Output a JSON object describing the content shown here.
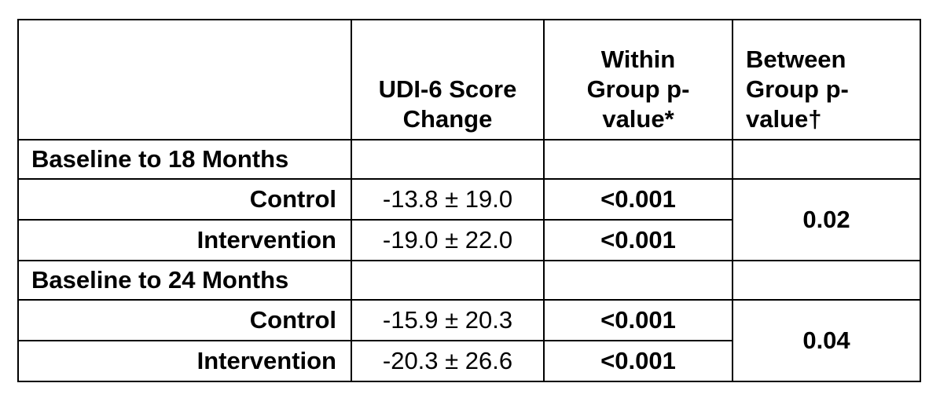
{
  "header": {
    "col1": "",
    "score_change": [
      "UDI-6 Score",
      "Change"
    ],
    "within": [
      "Within",
      "Group p-",
      "value*"
    ],
    "between": [
      "Between",
      "Group p-",
      "value†"
    ]
  },
  "sections": [
    {
      "label": "Baseline to 18 Months",
      "rows": [
        {
          "group": "Control",
          "score": "-13.8 ± 19.0",
          "within_p": "<0.001"
        },
        {
          "group": "Intervention",
          "score": "-19.0 ± 22.0",
          "within_p": "<0.001"
        }
      ],
      "between_p": "0.02"
    },
    {
      "label": "Baseline to 24 Months",
      "rows": [
        {
          "group": "Control",
          "score": "-15.9 ± 20.3",
          "within_p": "<0.001"
        },
        {
          "group": "Intervention",
          "score": "-20.3 ± 26.6",
          "within_p": "<0.001"
        }
      ],
      "between_p": "0.04"
    }
  ]
}
